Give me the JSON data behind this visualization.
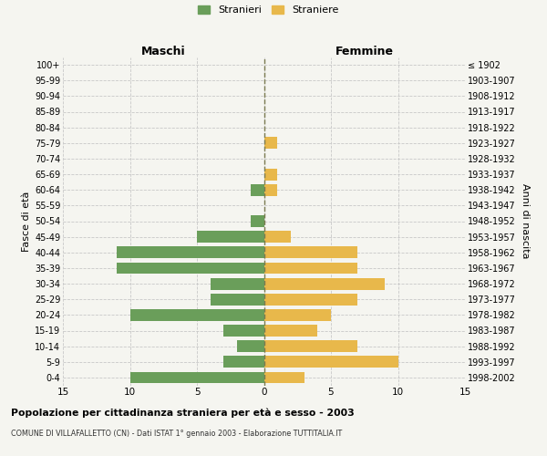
{
  "age_groups": [
    "0-4",
    "5-9",
    "10-14",
    "15-19",
    "20-24",
    "25-29",
    "30-34",
    "35-39",
    "40-44",
    "45-49",
    "50-54",
    "55-59",
    "60-64",
    "65-69",
    "70-74",
    "75-79",
    "80-84",
    "85-89",
    "90-94",
    "95-99",
    "100+"
  ],
  "birth_years": [
    "1998-2002",
    "1993-1997",
    "1988-1992",
    "1983-1987",
    "1978-1982",
    "1973-1977",
    "1968-1972",
    "1963-1967",
    "1958-1962",
    "1953-1957",
    "1948-1952",
    "1943-1947",
    "1938-1942",
    "1933-1937",
    "1928-1932",
    "1923-1927",
    "1918-1922",
    "1913-1917",
    "1908-1912",
    "1903-1907",
    "≤ 1902"
  ],
  "maschi": [
    10,
    3,
    2,
    3,
    10,
    4,
    4,
    11,
    11,
    5,
    1,
    0,
    1,
    0,
    0,
    0,
    0,
    0,
    0,
    0,
    0
  ],
  "femmine": [
    3,
    10,
    7,
    4,
    5,
    7,
    9,
    7,
    7,
    2,
    0,
    0,
    1,
    1,
    0,
    1,
    0,
    0,
    0,
    0,
    0
  ],
  "color_maschi": "#6a9e5a",
  "color_femmine": "#e8b84b",
  "title": "Popolazione per cittadinanza straniera per età e sesso - 2003",
  "subtitle": "COMUNE DI VILLAFALLETTO (CN) - Dati ISTAT 1° gennaio 2003 - Elaborazione TUTTITALIA.IT",
  "label_maschi": "Maschi",
  "label_femmine": "Femmine",
  "ylabel_left": "Fasce di età",
  "ylabel_right": "Anni di nascita",
  "legend_maschi": "Stranieri",
  "legend_femmine": "Straniere",
  "xlim": 15,
  "background_color": "#f5f5f0",
  "grid_color": "#c8c8c8"
}
